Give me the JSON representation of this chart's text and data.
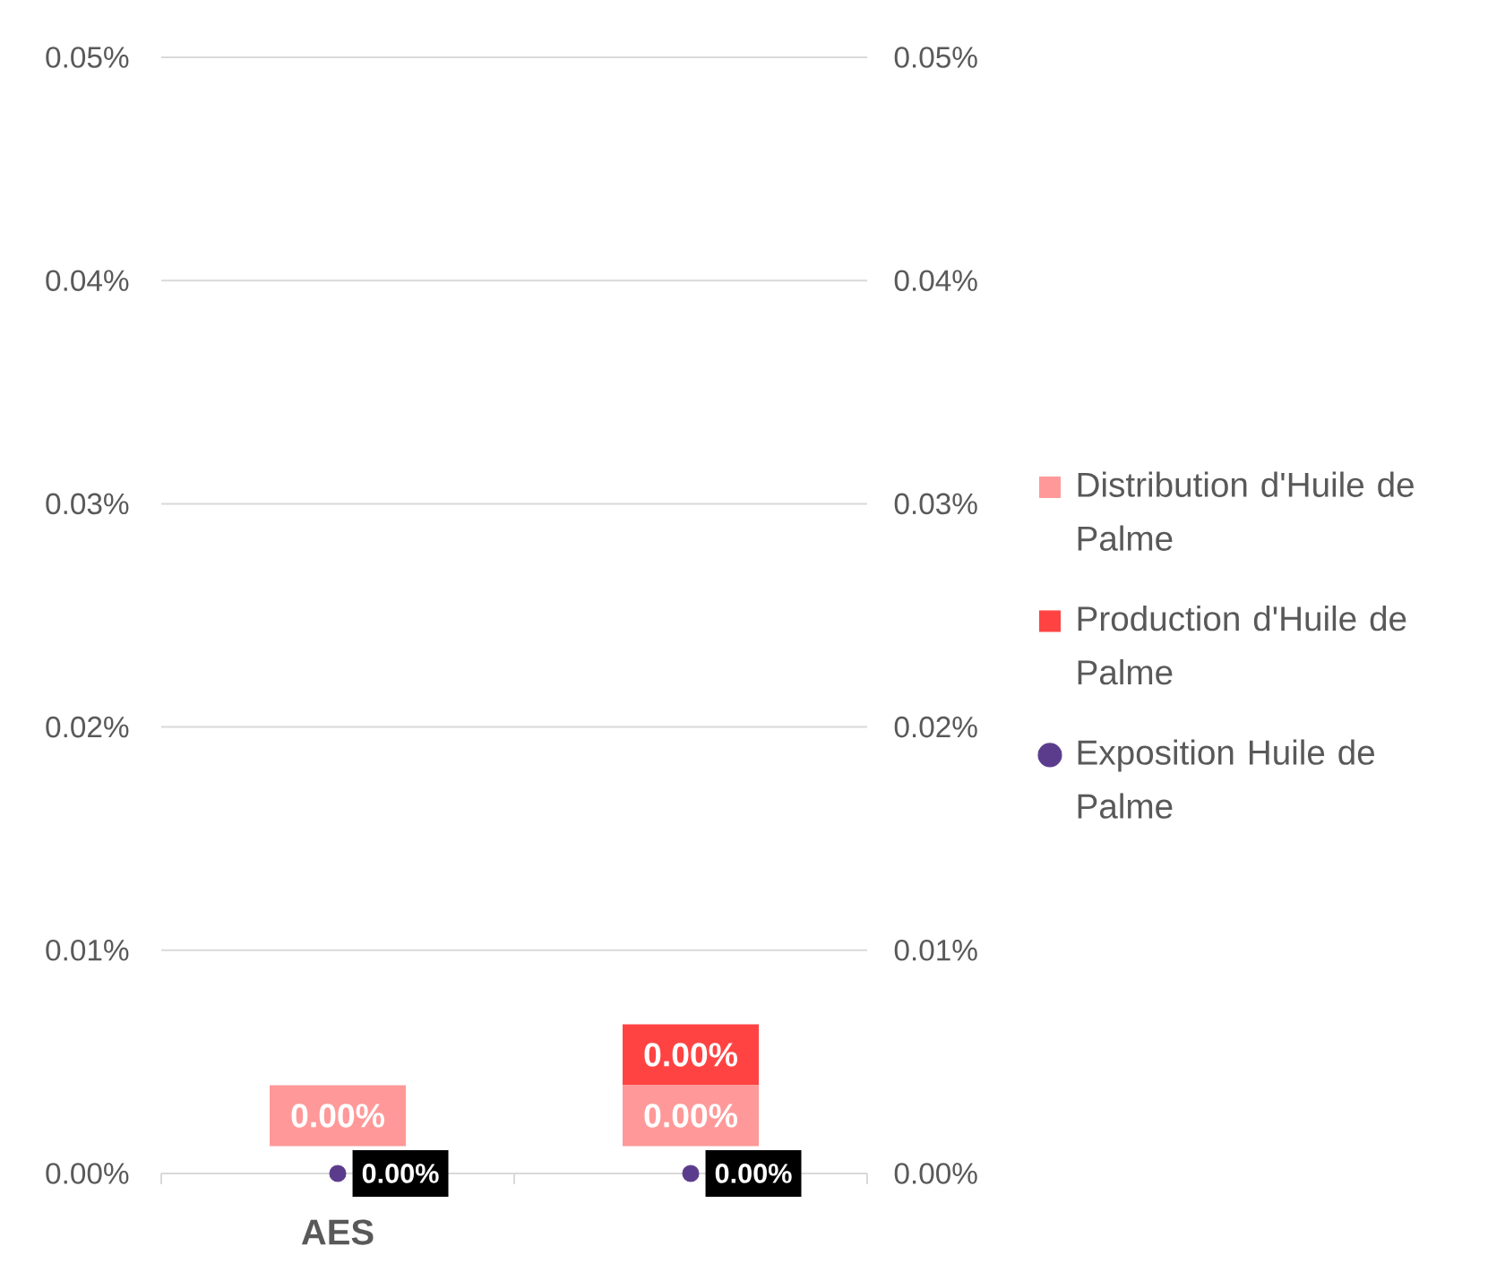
{
  "chart_data": {
    "type": "bar",
    "stacked": true,
    "categories": [
      "AES",
      null
    ],
    "series": [
      {
        "name": "Distribution d'Huile de Palme",
        "color": "#ff9999",
        "values": [
          0,
          0
        ],
        "value_labels": [
          "0.00%",
          "0.00%"
        ]
      },
      {
        "name": "Production d'Huile de Palme",
        "color": "#ff4343",
        "values": [
          0,
          0
        ],
        "value_labels": [
          null,
          "0.00%"
        ]
      },
      {
        "name": "Exposition Huile de Palme",
        "type": "scatter",
        "axis": "y2",
        "color": "#5b3c8c",
        "values": [
          0,
          0
        ],
        "value_labels": [
          "0.00%",
          "0.00%"
        ]
      }
    ],
    "ylim": [
      0,
      0.05
    ],
    "yticks": [
      {
        "value": 0,
        "label": "0.00%"
      },
      {
        "value": 0.01,
        "label": "0.01%"
      },
      {
        "value": 0.02,
        "label": "0.02%"
      },
      {
        "value": 0.03,
        "label": "0.03%"
      },
      {
        "value": 0.04,
        "label": "0.04%"
      },
      {
        "value": 0.05,
        "label": "0.05%"
      }
    ],
    "y2lim": [
      0,
      0.05
    ],
    "y2ticks": [
      {
        "value": 0,
        "label": "0.00%"
      },
      {
        "value": 0.01,
        "label": "0.01%"
      },
      {
        "value": 0.02,
        "label": "0.02%"
      },
      {
        "value": 0.03,
        "label": "0.03%"
      },
      {
        "value": 0.04,
        "label": "0.04%"
      },
      {
        "value": 0.05,
        "label": "0.05%"
      }
    ],
    "grid": "y",
    "legend": "right",
    "marker": "circle"
  }
}
